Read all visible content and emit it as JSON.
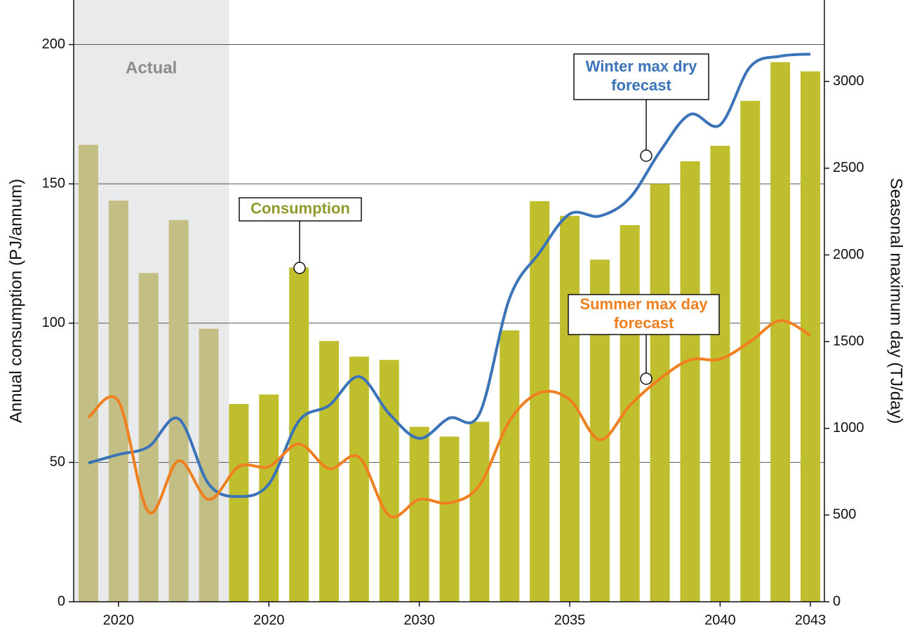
{
  "chart_data": {
    "type": "combo",
    "region_label": "Actual",
    "ylabel": "Annual consumption (PJ/annum)",
    "y2label": "Seasonal maximum day (TJ/day)",
    "categories": [
      null,
      "2020",
      null,
      null,
      null,
      null,
      "2020",
      null,
      null,
      null,
      null,
      "2030",
      null,
      null,
      null,
      null,
      "2035",
      null,
      null,
      null,
      null,
      "2040",
      null,
      null,
      "2043"
    ],
    "ylim": [
      0,
      216
    ],
    "yticks": [
      0,
      50,
      100,
      150,
      200
    ],
    "y2lim": [
      0,
      3470
    ],
    "y2ticks": [
      0,
      500,
      1000,
      1500,
      2000,
      2500,
      3000
    ],
    "grid": true,
    "series": [
      {
        "type": "bar",
        "colors": [
          "#c2be84",
          "#c2be84",
          "#c2be84",
          "#c2be84",
          "#c2be84",
          "#bfbf2e",
          "#bfbf2e",
          "#bfbf2e",
          "#bfbf2e",
          "#bfbf2e",
          "#bfbf2e",
          "#bfbf2e",
          "#bfbf2e",
          "#bfbf2e",
          "#bfbf2e",
          "#bfbf2e",
          "#bfbf2e",
          "#bfbf2e",
          "#bfbf2e",
          "#bfbf2e",
          "#bfbf2e",
          "#bfbf2e",
          "#bfbf2e",
          "#bfbf2e",
          "#bfbf2e"
        ],
        "color": "#8f9a2a",
        "values": [
          164,
          144,
          118,
          137,
          98,
          71,
          74.4,
          120,
          93.6,
          88,
          86.8,
          62.8,
          59.3,
          64.6,
          97.4,
          143.8,
          138.5,
          122.8,
          135.2,
          150,
          158.1,
          163.7,
          179.8,
          193.7,
          190.4
        ],
        "annotation": {
          "lines": [
            "Consumption"
          ]
        }
      },
      {
        "type": "line",
        "axis": "y2",
        "color": "#3b73b9",
        "values": [
          800,
          849,
          894,
          1055,
          679,
          607,
          679,
          1043,
          1132,
          1298,
          1084,
          942,
          1059,
          1084,
          1750,
          2014,
          2236,
          2224,
          2329,
          2596,
          2810,
          2750,
          3085,
          3146,
          3158
        ],
        "annotation": {
          "lines": [
            "Winter max dry",
            "forecast"
          ]
        }
      },
      {
        "type": "line",
        "axis": "y2",
        "color": "#f07f20",
        "values": [
          1063,
          1156,
          518,
          813,
          590,
          780,
          780,
          910,
          768,
          833,
          497,
          590,
          570,
          671,
          1043,
          1205,
          1165,
          934,
          1132,
          1286,
          1395,
          1399,
          1500,
          1621,
          1537
        ],
        "annotation": {
          "lines": [
            "Summer max day",
            "forecast"
          ]
        }
      }
    ]
  }
}
